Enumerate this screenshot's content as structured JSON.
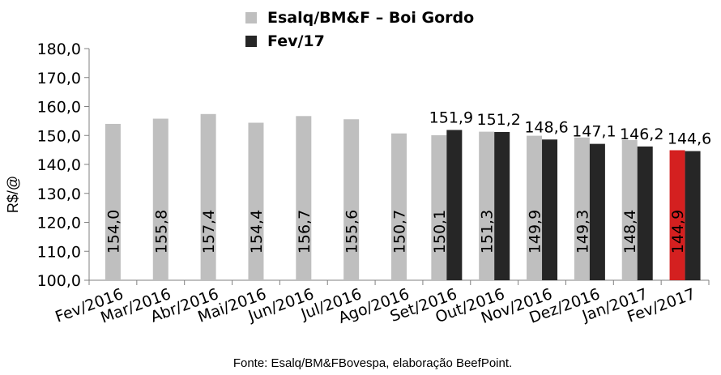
{
  "chart_data": {
    "type": "bar",
    "categories": [
      "Fev/2016",
      "Mar/2016",
      "Abr/2016",
      "Mai/2016",
      "Jun/2016",
      "Jul/2016",
      "Ago/2016",
      "Set/2016",
      "Out/2016",
      "Nov/2016",
      "Dez/2016",
      "Jan/2017",
      "Fev/2017"
    ],
    "series": [
      {
        "name": "Esalq/BM&F – Boi Gordo",
        "color": "#bfbfbf",
        "highlight_color": "#d42020",
        "highlight_index": 12,
        "values": [
          154.0,
          155.8,
          157.4,
          154.4,
          156.7,
          155.6,
          150.7,
          150.1,
          151.3,
          149.9,
          149.3,
          148.4,
          144.9
        ],
        "labels": [
          "154,0",
          "155,8",
          "157,4",
          "154,4",
          "156,7",
          "155,6",
          "150,7",
          "150,1",
          "151,3",
          "149,9",
          "149,3",
          "148,4",
          "144,9"
        ]
      },
      {
        "name": "Fev/17",
        "color": "#262626",
        "values": [
          null,
          null,
          null,
          null,
          null,
          null,
          null,
          151.9,
          151.2,
          148.6,
          147.1,
          146.2,
          144.6
        ],
        "labels": [
          "",
          "",
          "",
          "",
          "",
          "",
          "",
          "151,9",
          "151,2",
          "148,6",
          "147,1",
          "146,2",
          "144,6"
        ]
      }
    ],
    "ylabel": "R$/@",
    "ylim": [
      100,
      180
    ],
    "yticks": [
      100,
      110,
      120,
      130,
      140,
      150,
      160,
      170,
      180
    ],
    "ytick_labels": [
      "100,0",
      "110,0",
      "120,0",
      "130,0",
      "140,0",
      "150,0",
      "160,0",
      "170,0",
      "180,0"
    ],
    "grid": false,
    "legend_position": "top-center",
    "source": "Fonte: Esalq/BM&FBovespa, elaboração BeefPoint."
  }
}
